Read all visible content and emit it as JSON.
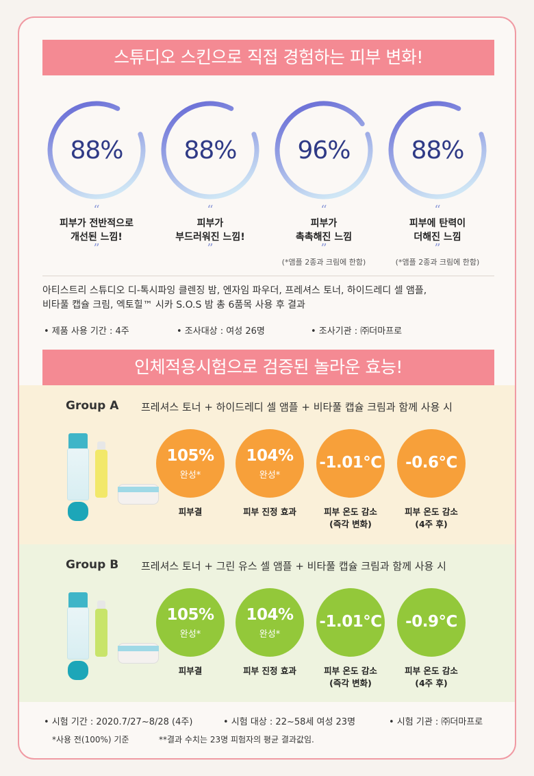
{
  "banners": {
    "top": "스튜디오 스킨으로 직접 경험하는 피부 변화!",
    "middle": "인체적용시험으로 검증된 놀라운 효능!"
  },
  "rings": [
    {
      "value": "88%",
      "percent": 88,
      "line1": "피부가 전반적으로",
      "line2": "개선된 느낌!",
      "note": ""
    },
    {
      "value": "88%",
      "percent": 88,
      "line1": "피부가",
      "line2": "부드러워진 느낌!",
      "note": ""
    },
    {
      "value": "96%",
      "percent": 96,
      "line1": "피부가",
      "line2": "촉촉해진 느낌",
      "note": "(*앰플 2종과 크림에 한함)"
    },
    {
      "value": "88%",
      "percent": 88,
      "line1": "피부에 탄력이",
      "line2": "더해진 느낌",
      "note": "(*앰플 2종과 크림에 한함)"
    }
  ],
  "quote_open": "“",
  "quote_close": "”",
  "description": {
    "line1": "아티스트리 스튜디오 디-톡시파잉 클렌징 밤, 엔자임 파우더, 프레셔스 토너, 하이드레디 셀 앰플,",
    "line2": "비타풀 캡슐 크림, 엑토힐™ 시카 S.O.S 밤 총 6품목 사용 후 결과"
  },
  "survey": {
    "period": "• 제품 사용 기간 : 4주",
    "subjects": "• 조사대상 : 여성 26명",
    "agency": "• 조사기관 : ㈜더마프로"
  },
  "group_a": {
    "title": "Group A",
    "desc": "프레셔스 토너 + 하이드레디 셀 앰플 + 비타풀 캡슐 크림과 함께 사용 시",
    "items": [
      {
        "big": "105%",
        "small": "완성*",
        "label1": "피부결",
        "label2": ""
      },
      {
        "big": "104%",
        "small": "완성*",
        "label1": "피부 진정 효과",
        "label2": ""
      },
      {
        "big": "-1.01℃",
        "small": "",
        "label1": "피부 온도 감소",
        "label2": "(즉각 변화)"
      },
      {
        "big": "-0.6℃",
        "small": "",
        "label1": "피부 온도 감소",
        "label2": "(4주 후)"
      }
    ]
  },
  "group_b": {
    "title": "Group B",
    "desc": "프레셔스 토너 + 그린 유스 셀 앰플 + 비타풀 캡슐 크림과 함께 사용 시",
    "items": [
      {
        "big": "105%",
        "small": "완성*",
        "label1": "피부결",
        "label2": ""
      },
      {
        "big": "104%",
        "small": "완성*",
        "label1": "피부 진정 효과",
        "label2": ""
      },
      {
        "big": "-1.01℃",
        "small": "",
        "label1": "피부 온도 감소",
        "label2": "(즉각 변화)"
      },
      {
        "big": "-0.9℃",
        "small": "",
        "label1": "피부 온도 감소",
        "label2": "(4주 후)"
      }
    ]
  },
  "footer": {
    "period": "• 시험 기간 : 2020.7/27~8/28 (4주)",
    "subjects": "• 시험 대상 : 22~58세 여성 23명",
    "agency": "• 시험 기관 : ㈜더마프로",
    "note1": "*사용 전(100%) 기준",
    "note2": "**결과 수치는 23명 피험자의 평균 결과값임."
  },
  "colors": {
    "banner": "#f48a93",
    "ring_start": "#6f74d8",
    "ring_end": "#cfe6f5",
    "orange": "#f7a03a",
    "green": "#93c83a"
  }
}
